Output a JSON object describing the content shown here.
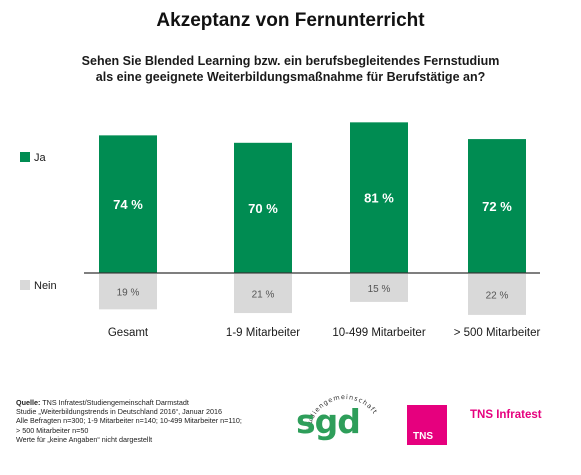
{
  "title": "Akzeptanz von Fernunterricht",
  "subtitle": [
    "Sehen Sie Blended Learning bzw. ein berufsbegleitendes Fernstudium",
    "als eine geeignete Weiterbildungsmaßnahme für Berufstätige an?"
  ],
  "chart_data": {
    "type": "bar",
    "categories": [
      "Gesamt",
      "1-9 Mitarbeiter",
      "10-499 Mitarbeiter",
      "> 500 Mitarbeiter"
    ],
    "series": [
      {
        "name": "Ja",
        "values": [
          74,
          70,
          81,
          72
        ],
        "labels": [
          "74 %",
          "70 %",
          "81 %",
          "72 %"
        ],
        "color": "#008c52"
      },
      {
        "name": "Nein",
        "values": [
          19,
          21,
          15,
          22
        ],
        "labels": [
          "19 %",
          "21 %",
          "15 %",
          "22 %"
        ],
        "color": "#d9d9d9"
      }
    ],
    "legend_position": "left",
    "grid": false
  },
  "footer": {
    "quelle_label": "Quelle:",
    "quelle_text": "TNS Infratest/Studiengemeinschaft Darmstadt",
    "lines": [
      "Studie „Weiterbildungstrends in Deutschland 2016“, Januar 2016",
      "Alle Befragten n=300; 1-9 Mitarbeiter n=140; 10-499 Mitarbeiter n=110;",
      "> 500 Mitarbeiter n=50",
      "Werte für „keine Angaben“ nicht dargestellt"
    ]
  },
  "logos": {
    "sgd": "sgd",
    "sgd_ring": "studiengemeinschaft",
    "tns_box": "TNS",
    "tns_name": "TNS Infratest",
    "tns_color": "#e6007e",
    "sgd_color": "#2e9e5a"
  }
}
